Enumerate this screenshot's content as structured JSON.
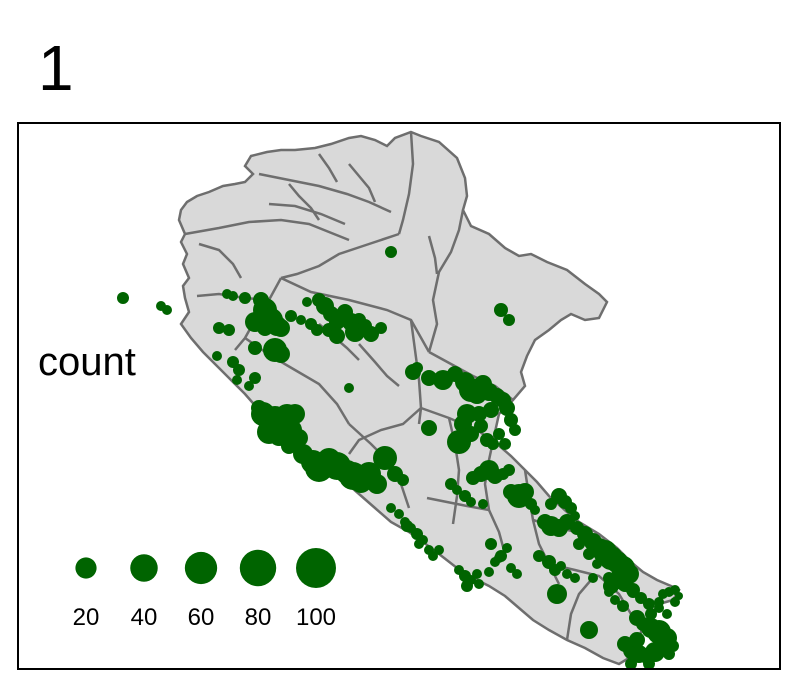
{
  "panel_label": "1",
  "legend": {
    "title": "count",
    "labels": [
      "20",
      "40",
      "60",
      "80",
      "100"
    ],
    "values": [
      20,
      40,
      60,
      80,
      100
    ]
  },
  "colors": {
    "point": "#006400",
    "region_fill": "#d9d9d9",
    "region_border": "#6e6e6e",
    "frame": "#000000",
    "background": "#ffffff"
  },
  "map": {
    "type": "proportional-symbol map",
    "symbol": "circle",
    "size_variable": "count"
  }
}
